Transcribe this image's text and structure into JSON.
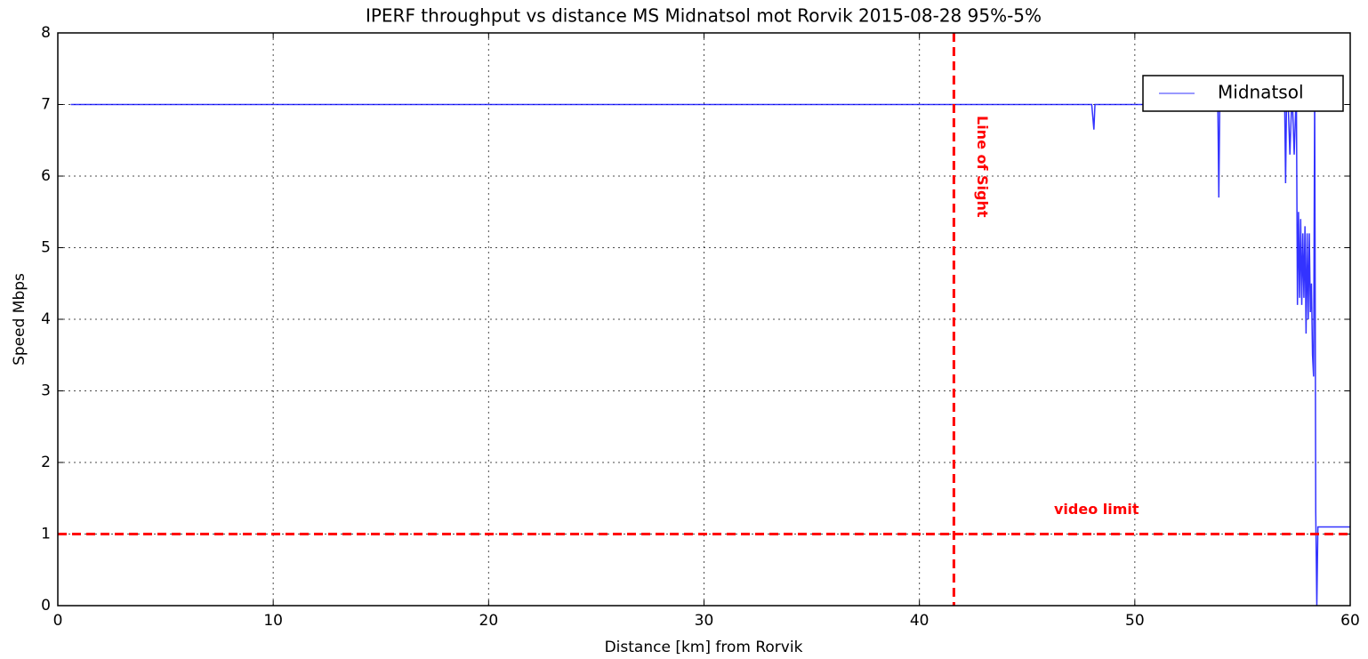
{
  "chart_data": {
    "type": "line",
    "title": "IPERF throughput vs distance MS Midnatsol mot Rorvik 2015-08-28 95%-5%",
    "x_label": "Distance [km] from Rorvik",
    "y_label": "Speed Mbps",
    "xlim": [
      0,
      60
    ],
    "ylim": [
      0,
      8
    ],
    "xticks": [
      0,
      10,
      20,
      30,
      40,
      50,
      60
    ],
    "yticks": [
      0,
      1,
      2,
      3,
      4,
      5,
      6,
      7,
      8
    ],
    "grid": true,
    "legend": "upper right",
    "x": [
      0.6,
      10,
      20,
      30,
      40,
      48.0,
      48.1,
      48.15,
      53.8,
      53.85,
      53.9,
      53.95,
      54.0,
      56.9,
      56.95,
      57.0,
      57.05,
      57.1,
      57.2,
      57.3,
      57.4,
      57.5,
      57.55,
      57.6,
      57.65,
      57.7,
      57.75,
      57.8,
      57.85,
      57.9,
      57.95,
      58.0,
      58.05,
      58.1,
      58.15,
      58.2,
      58.25,
      58.3,
      58.35,
      58.4,
      58.45,
      58.5,
      60
    ],
    "series": [
      {
        "name": "Midnatsol",
        "color": "#0000ff",
        "values": [
          7,
          7,
          7,
          7,
          7,
          7,
          6.65,
          7,
          7,
          7.15,
          5.7,
          7.2,
          7,
          7,
          7.2,
          5.9,
          7.2,
          7.2,
          6.3,
          7.2,
          6.3,
          7.2,
          4.2,
          5.5,
          4.3,
          5.4,
          4.2,
          5.2,
          4.3,
          5.3,
          3.8,
          5.2,
          4.0,
          5.2,
          4.1,
          4.5,
          3.5,
          3.2,
          7.2,
          1.3,
          0.0,
          1.1,
          1.1
        ]
      }
    ],
    "reference_lines": [
      {
        "axis": "x",
        "value": 41.6,
        "color": "#ff0000",
        "label": "Line of Sight"
      },
      {
        "axis": "y",
        "value": 1.0,
        "color": "#ff0000",
        "label": "video limit"
      }
    ]
  }
}
